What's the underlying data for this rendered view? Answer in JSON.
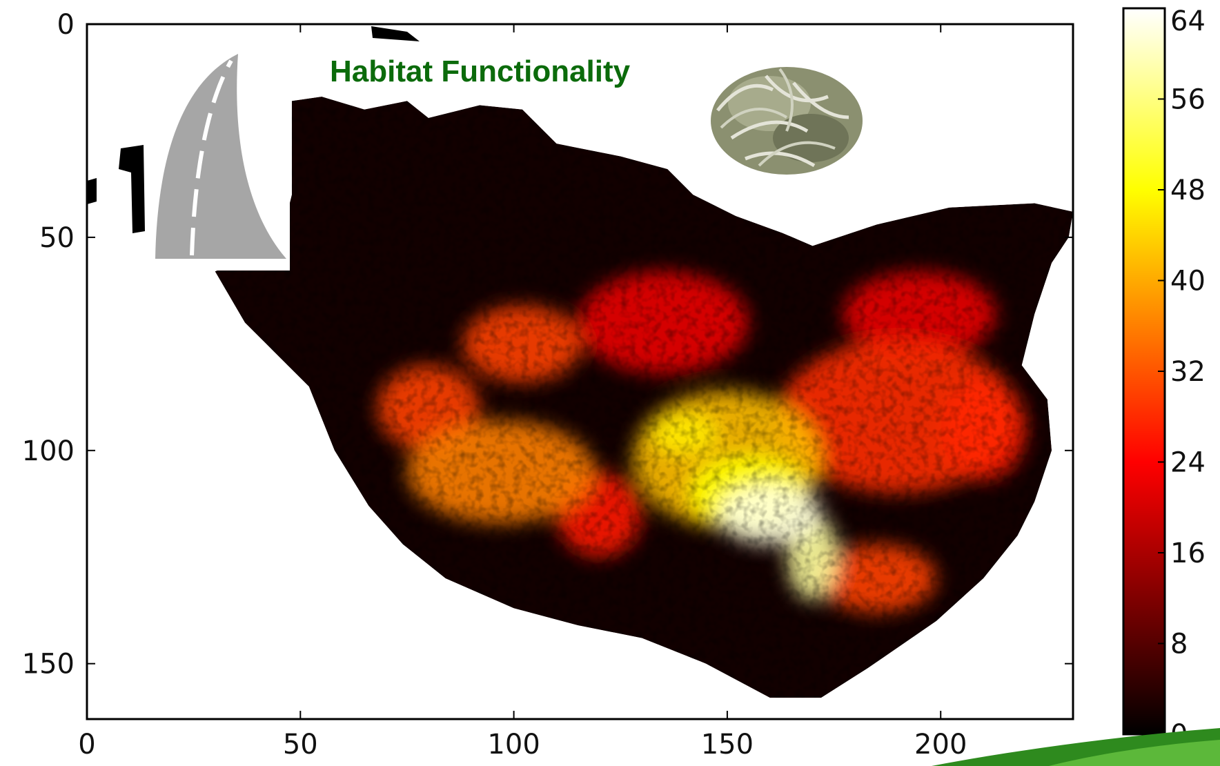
{
  "chart_data": {
    "type": "heatmap",
    "title": "Habitat Functionality",
    "title_color": "#0b6b0b",
    "colormap": "hot",
    "xlim": [
      0,
      231
    ],
    "ylim": [
      163,
      0
    ],
    "x_ticks": [
      0,
      50,
      100,
      150,
      200
    ],
    "x_tick_labels": [
      "0",
      "50",
      "100",
      "150",
      "200"
    ],
    "y_ticks": [
      0,
      50,
      100,
      150
    ],
    "y_tick_labels": [
      "0",
      "50",
      "100",
      "150"
    ],
    "colorbar": {
      "range": [
        0,
        64
      ],
      "ticks": [
        0,
        8,
        16,
        24,
        32,
        40,
        48,
        56,
        64
      ],
      "tick_labels": [
        "0",
        "8",
        "16",
        "24",
        "32",
        "40",
        "48",
        "56",
        "64"
      ]
    },
    "grid": false,
    "region_outline": [
      [
        48,
        18
      ],
      [
        55,
        17
      ],
      [
        65,
        20
      ],
      [
        75,
        18
      ],
      [
        80,
        22
      ],
      [
        92,
        19
      ],
      [
        102,
        20
      ],
      [
        110,
        28
      ],
      [
        115,
        29
      ],
      [
        125,
        31
      ],
      [
        136,
        34
      ],
      [
        142,
        40
      ],
      [
        152,
        45
      ],
      [
        163,
        49
      ],
      [
        170,
        52
      ],
      [
        185,
        47
      ],
      [
        202,
        43
      ],
      [
        222,
        42
      ],
      [
        231,
        44
      ],
      [
        230,
        50
      ],
      [
        226,
        56
      ],
      [
        222,
        68
      ],
      [
        219,
        80
      ],
      [
        225,
        88
      ],
      [
        226,
        100
      ],
      [
        222,
        112
      ],
      [
        218,
        120
      ],
      [
        210,
        130
      ],
      [
        199,
        140
      ],
      [
        183,
        151
      ],
      [
        172,
        158
      ],
      [
        160,
        158
      ],
      [
        145,
        150
      ],
      [
        130,
        144
      ],
      [
        115,
        141
      ],
      [
        100,
        137
      ],
      [
        84,
        130
      ],
      [
        74,
        122
      ],
      [
        66,
        113
      ],
      [
        58,
        100
      ],
      [
        52,
        85
      ],
      [
        44,
        77
      ],
      [
        37,
        70
      ],
      [
        30,
        58
      ],
      [
        45,
        52
      ],
      [
        48,
        40
      ],
      [
        48,
        30
      ]
    ],
    "hot_spots": [
      {
        "x": 160,
        "y": 115,
        "value": 62,
        "rx": 12,
        "ry": 7
      },
      {
        "x": 170,
        "y": 125,
        "value": 58,
        "rx": 6,
        "ry": 10
      },
      {
        "x": 155,
        "y": 110,
        "value": 48,
        "rx": 14,
        "ry": 9
      },
      {
        "x": 140,
        "y": 96,
        "value": 46,
        "rx": 8,
        "ry": 5
      },
      {
        "x": 150,
        "y": 102,
        "value": 42,
        "rx": 22,
        "ry": 16
      },
      {
        "x": 97,
        "y": 105,
        "value": 36,
        "rx": 22,
        "ry": 12
      },
      {
        "x": 80,
        "y": 90,
        "value": 30,
        "rx": 12,
        "ry": 10
      },
      {
        "x": 102,
        "y": 75,
        "value": 30,
        "rx": 14,
        "ry": 9
      },
      {
        "x": 190,
        "y": 92,
        "value": 28,
        "rx": 28,
        "ry": 18
      },
      {
        "x": 210,
        "y": 95,
        "value": 26,
        "rx": 10,
        "ry": 12
      },
      {
        "x": 135,
        "y": 70,
        "value": 22,
        "rx": 20,
        "ry": 12
      },
      {
        "x": 195,
        "y": 68,
        "value": 22,
        "rx": 18,
        "ry": 10
      },
      {
        "x": 185,
        "y": 130,
        "value": 30,
        "rx": 14,
        "ry": 8
      },
      {
        "x": 120,
        "y": 115,
        "value": 26,
        "rx": 10,
        "ry": 10
      }
    ]
  },
  "overlays": {
    "road_icon": "road-icon",
    "plant_icon": "plant-icon"
  }
}
